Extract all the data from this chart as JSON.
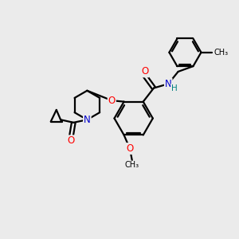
{
  "bg_color": "#ebebeb",
  "bond_color": "#000000",
  "atom_colors": {
    "O": "#ff0000",
    "N": "#0000cc",
    "H": "#008080",
    "C": "#000000"
  },
  "line_width": 1.6,
  "font_size": 8.5,
  "figsize": [
    3.0,
    3.0
  ],
  "dpi": 100
}
